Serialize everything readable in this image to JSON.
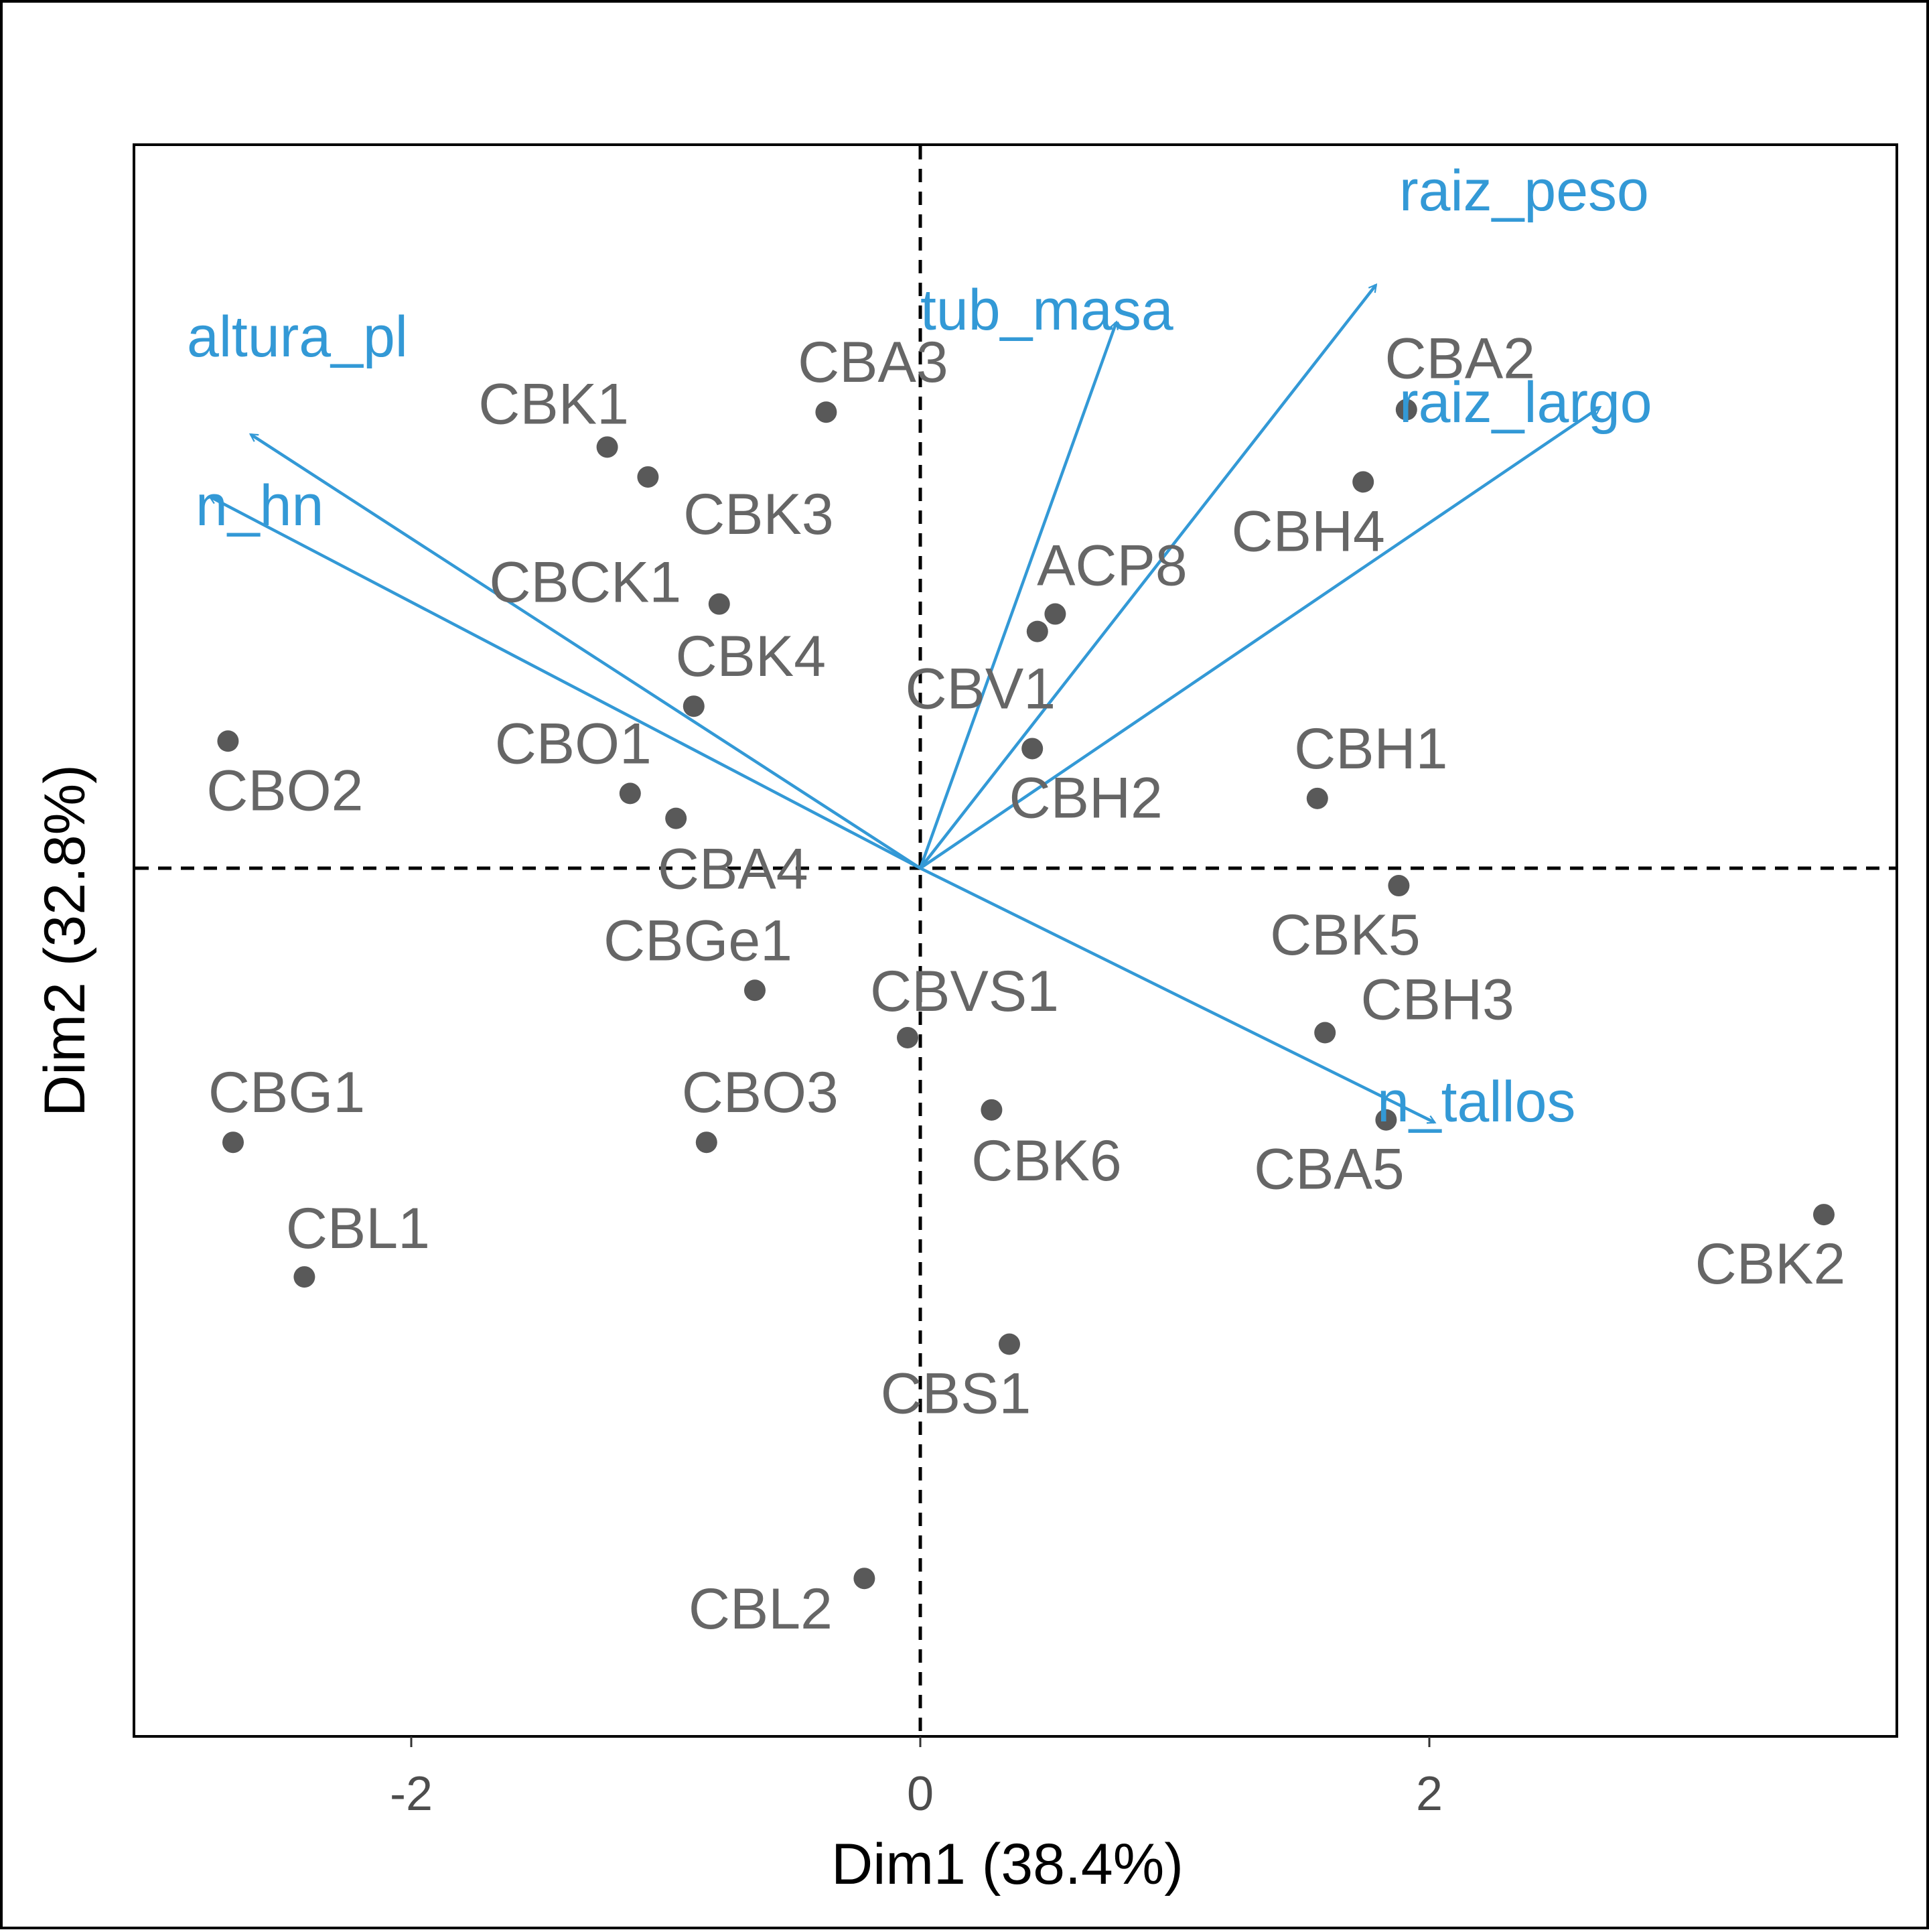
{
  "chart_data": {
    "type": "scatter",
    "subtype": "pca-biplot",
    "xlabel": "Dim1 (38.4%)",
    "ylabel": "Dim2 (32.8%)",
    "xlim": [
      -2.0,
      3.8
    ],
    "ylim": [
      -2.85,
      2.85
    ],
    "x_ticks": [
      -2,
      0,
      2
    ],
    "x_tick_labels": [
      "-2",
      "0",
      "2"
    ],
    "y_ticks": [],
    "grid": false,
    "reference_lines": {
      "x": 0,
      "y": 0,
      "style": "dashed"
    },
    "colors": {
      "points": "#595959",
      "point_labels": "#666666",
      "arrows": "#3399D6",
      "axes": "#000000"
    },
    "points": [
      {
        "label": "CBA3",
        "x": -0.37,
        "y": 1.83
      },
      {
        "label": "CBK1",
        "x": -1.23,
        "y": 1.69
      },
      {
        "label": "CBK3",
        "x": -1.07,
        "y": 1.57
      },
      {
        "label": "CBA2",
        "x": 1.91,
        "y": 1.84
      },
      {
        "label": "CBH4",
        "x": 1.74,
        "y": 1.55
      },
      {
        "label": "ACP8",
        "x": 0.53,
        "y": 1.02
      },
      {
        "label": "CBV1",
        "x": 0.46,
        "y": 0.95
      },
      {
        "label": "CBCK1",
        "x": -0.79,
        "y": 1.06
      },
      {
        "label": "CBK4",
        "x": -0.89,
        "y": 0.65
      },
      {
        "label": "CBO2",
        "x": -2.72,
        "y": 0.51
      },
      {
        "label": "CBO1",
        "x": -1.14,
        "y": 0.3
      },
      {
        "label": "CBA4",
        "x": -0.96,
        "y": 0.2
      },
      {
        "label": "CBH2",
        "x": 0.44,
        "y": 0.48
      },
      {
        "label": "CBH1",
        "x": 1.56,
        "y": 0.28
      },
      {
        "label": "CBK5",
        "x": 1.88,
        "y": -0.07
      },
      {
        "label": "CBGe1",
        "x": -0.65,
        "y": -0.49
      },
      {
        "label": "CBVS1",
        "x": -0.05,
        "y": -0.68
      },
      {
        "label": "CBH3",
        "x": 1.59,
        "y": -0.66
      },
      {
        "label": "CBA5",
        "x": 1.83,
        "y": -1.01
      },
      {
        "label": "CBK6",
        "x": 0.28,
        "y": -0.97
      },
      {
        "label": "CBO3",
        "x": -0.84,
        "y": -1.1
      },
      {
        "label": "CBG1",
        "x": -2.7,
        "y": -1.1
      },
      {
        "label": "CBK2",
        "x": 3.55,
        "y": -1.39
      },
      {
        "label": "CBL1",
        "x": -2.42,
        "y": -1.64
      },
      {
        "label": "CBS1",
        "x": 0.35,
        "y": -1.91
      },
      {
        "label": "CBL2",
        "x": -0.22,
        "y": -2.85
      }
    ],
    "variables": [
      {
        "label": "raiz_peso",
        "x": 1.79,
        "y": 2.34
      },
      {
        "label": "tub_masa",
        "x": 0.77,
        "y": 2.19
      },
      {
        "label": "altura_pl",
        "x": -2.63,
        "y": 1.74
      },
      {
        "label": "raiz_largo",
        "x": 2.67,
        "y": 1.85
      },
      {
        "label": "n_hn",
        "x": -2.79,
        "y": 1.49
      },
      {
        "label": "n_tallos",
        "x": 2.02,
        "y": -1.02
      }
    ]
  }
}
